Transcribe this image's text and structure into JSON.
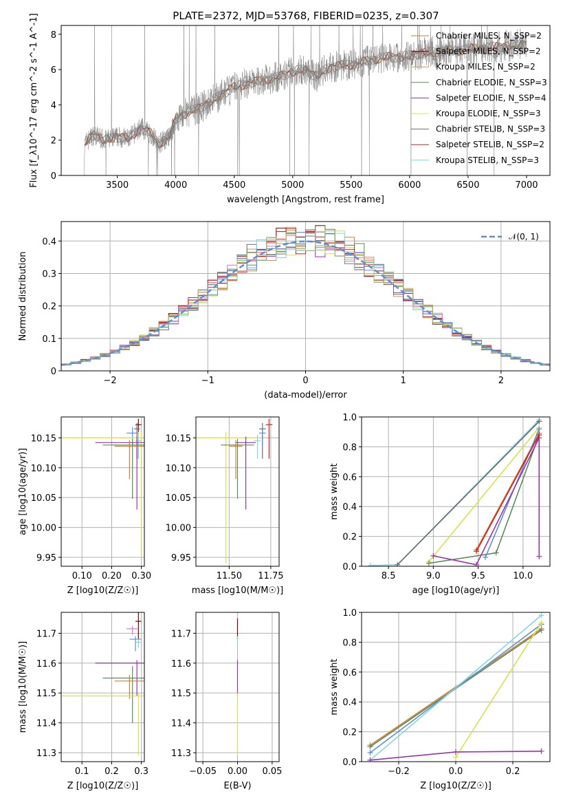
{
  "title": "PLATE=2372, MJD=53768, FIBERID=0235, z=0.307",
  "colors": [
    "#d97c2b",
    "#7a0000",
    "#c89a5a",
    "#5a8a5a",
    "#9933aa",
    "#d8e04a",
    "#6b6b6b",
    "#cc2222",
    "#7fd4e0"
  ],
  "chart_data": [
    {
      "id": "spectrum",
      "type": "line",
      "xlabel": "wavelength [Angstrom, rest frame]",
      "ylabel": "Flux [f_λ10^-17 erg cm^-2 s^-1 A^-1]",
      "xlim": [
        3020,
        7200
      ],
      "ylim": [
        0,
        8.5
      ],
      "xticks": [
        3500,
        4000,
        4500,
        5000,
        5500,
        6000,
        6500,
        7000
      ],
      "yticks": [
        0,
        2,
        4,
        6,
        8
      ],
      "legend_position": "top-right",
      "series": [
        {
          "name": "Chabrier MILES, N_SSP=2",
          "color": "#d97c2b"
        },
        {
          "name": "Salpeter MILES, N_SSP=2",
          "color": "#7a0000"
        },
        {
          "name": "Kroupa MILES, N_SSP=2",
          "color": "#c89a5a"
        },
        {
          "name": "Chabrier ELODIE, N_SSP=3",
          "color": "#5a8a5a"
        },
        {
          "name": "Salpeter ELODIE, N_SSP=4",
          "color": "#9933aa"
        },
        {
          "name": "Kroupa ELODIE, N_SSP=3",
          "color": "#d8e04a"
        },
        {
          "name": "Chabrier STELIB, N_SSP=3",
          "color": "#6b6b6b"
        },
        {
          "name": "Salpeter STELIB, N_SSP=2",
          "color": "#cc2222"
        },
        {
          "name": "Kroupa STELIB, N_SSP=3",
          "color": "#7fd4e0"
        }
      ],
      "model_curve": [
        [
          3220,
          1.8
        ],
        [
          3300,
          2.3
        ],
        [
          3400,
          2.0
        ],
        [
          3500,
          2.2
        ],
        [
          3600,
          2.1
        ],
        [
          3700,
          2.7
        ],
        [
          3800,
          2.3
        ],
        [
          3850,
          1.8
        ],
        [
          3950,
          2.2
        ],
        [
          4000,
          3.2
        ],
        [
          4100,
          3.6
        ],
        [
          4200,
          3.8
        ],
        [
          4300,
          4.2
        ],
        [
          4400,
          4.6
        ],
        [
          4500,
          5.0
        ],
        [
          4600,
          5.2
        ],
        [
          4700,
          5.3
        ],
        [
          4800,
          5.5
        ],
        [
          4900,
          5.6
        ],
        [
          5000,
          5.9
        ],
        [
          5100,
          6.0
        ],
        [
          5200,
          5.6
        ],
        [
          5300,
          6.1
        ],
        [
          5400,
          6.2
        ],
        [
          5500,
          6.3
        ],
        [
          5600,
          6.4
        ],
        [
          5700,
          6.6
        ],
        [
          5800,
          6.7
        ],
        [
          5900,
          6.7
        ],
        [
          6000,
          6.8
        ],
        [
          6200,
          7.0
        ],
        [
          6400,
          7.1
        ],
        [
          6600,
          7.2
        ],
        [
          6800,
          7.3
        ],
        [
          7000,
          7.5
        ]
      ]
    },
    {
      "id": "residuals",
      "type": "line",
      "xlabel": "(data-model)/error",
      "ylabel": "Normed distribution",
      "xlim": [
        -2.5,
        2.5
      ],
      "ylim": [
        0,
        0.46
      ],
      "xticks": [
        -2,
        -1,
        0,
        1,
        2
      ],
      "yticks": [
        0.0,
        0.1,
        0.2,
        0.3,
        0.4
      ],
      "legend": "𝒩(0, 1)",
      "legend_position": "top-right",
      "gaussian_color": "#5b8dd9"
    },
    {
      "id": "age-vs-Z",
      "type": "scatter",
      "xlabel": "Z [log10(Z/Z☉)]",
      "ylabel": "age  [log10(age/yr)]",
      "xlim": [
        0.03,
        0.31
      ],
      "ylim": [
        9.935,
        10.185
      ],
      "xticks": [
        0.1,
        0.2,
        0.3
      ],
      "yticks": [
        9.95,
        10.0,
        10.05,
        10.1,
        10.15
      ]
    },
    {
      "id": "age-vs-mass",
      "type": "scatter",
      "xlabel": "mass [log10(M/M☉)]",
      "ylabel": "",
      "xlim": [
        11.3,
        11.8
      ],
      "ylim": [
        9.935,
        10.185
      ],
      "xticks": [
        11.5,
        11.75
      ],
      "yticks": [
        9.95,
        10.0,
        10.05,
        10.1,
        10.15
      ]
    },
    {
      "id": "massweight-vs-age",
      "type": "line",
      "xlabel": "age  [log10(age/yr)]",
      "ylabel": "mass weight",
      "xlim": [
        8.2,
        10.3
      ],
      "ylim": [
        0,
        1.0
      ],
      "xticks": [
        8.5,
        9.0,
        9.5,
        10.0
      ],
      "yticks": [
        0.0,
        0.2,
        0.4,
        0.6,
        0.8,
        1.0
      ],
      "series": [
        {
          "color": "#7fd4e0",
          "x": [
            8.3,
            8.6,
            10.18
          ],
          "y": [
            0.005,
            0.01,
            0.98
          ]
        },
        {
          "color": "#6b6b6b",
          "x": [
            8.6,
            10.18
          ],
          "y": [
            0.01,
            0.97
          ]
        },
        {
          "color": "#d8e04a",
          "x": [
            8.95,
            10.18
          ],
          "y": [
            0.03,
            0.93
          ]
        },
        {
          "color": "#d97c2b",
          "x": [
            9.48,
            10.18
          ],
          "y": [
            0.11,
            0.89
          ]
        },
        {
          "color": "#5a8a5a",
          "x": [
            8.95,
            9.7,
            10.18
          ],
          "y": [
            0.02,
            0.09,
            0.88
          ]
        },
        {
          "color": "#5b8dd9",
          "x": [
            9.58,
            10.18
          ],
          "y": [
            0.06,
            0.92
          ]
        },
        {
          "color": "#9933aa",
          "x": [
            9.0,
            9.48,
            10.18,
            10.18
          ],
          "y": [
            0.07,
            0.01,
            0.86,
            0.065
          ]
        },
        {
          "color": "#cc2222",
          "x": [
            9.48,
            10.18
          ],
          "y": [
            0.1,
            0.88
          ]
        }
      ]
    },
    {
      "id": "mass-vs-Z",
      "type": "scatter",
      "xlabel": "Z [log10(Z/Z☉)]",
      "ylabel": "mass [log10(M/M☉)]",
      "xlim": [
        0.03,
        0.31
      ],
      "ylim": [
        11.27,
        11.77
      ],
      "xticks": [
        0.1,
        0.2,
        0.3
      ],
      "yticks": [
        11.3,
        11.4,
        11.5,
        11.6,
        11.7
      ]
    },
    {
      "id": "mass-vs-EBV",
      "type": "scatter",
      "xlabel": "E(B-V)",
      "ylabel": "",
      "xlim": [
        -0.06,
        0.06
      ],
      "ylim": [
        11.27,
        11.77
      ],
      "xticks": [
        -0.05,
        0.0,
        0.05
      ],
      "yticks": [
        11.3,
        11.4,
        11.5,
        11.6,
        11.7
      ]
    },
    {
      "id": "massweight-vs-Z",
      "type": "line",
      "xlabel": "Z [log10(Z/Z☉)]",
      "ylabel": "mass weight",
      "xlim": [
        -0.33,
        0.33
      ],
      "ylim": [
        0,
        1.0
      ],
      "xticks": [
        -0.2,
        0.0,
        0.2
      ],
      "yticks": [
        0.0,
        0.2,
        0.4,
        0.6,
        0.8,
        1.0
      ],
      "series": [
        {
          "color": "#d97c2b",
          "x": [
            -0.3,
            0.3
          ],
          "y": [
            0.11,
            0.89
          ]
        },
        {
          "color": "#5a8a5a",
          "x": [
            -0.3,
            0.3
          ],
          "y": [
            0.1,
            0.88
          ]
        },
        {
          "color": "#5b8dd9",
          "x": [
            -0.3,
            0.3
          ],
          "y": [
            0.06,
            0.92
          ]
        },
        {
          "color": "#7fd4e0",
          "x": [
            -0.3,
            0.3
          ],
          "y": [
            0.01,
            0.98
          ]
        },
        {
          "color": "#d8e04a",
          "x": [
            0.0,
            0.3
          ],
          "y": [
            0.03,
            0.93
          ]
        },
        {
          "color": "#9933aa",
          "x": [
            -0.3,
            0.0,
            0.3
          ],
          "y": [
            0.01,
            0.065,
            0.07
          ]
        }
      ]
    }
  ]
}
